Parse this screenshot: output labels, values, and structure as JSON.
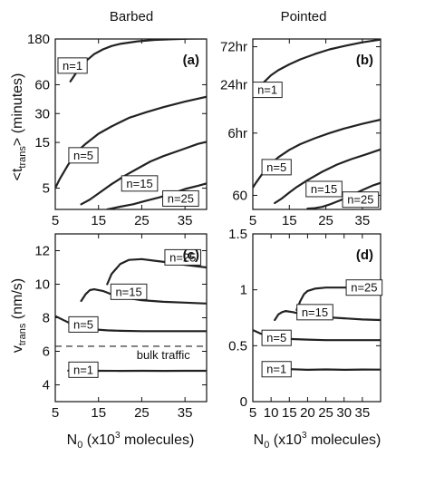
{
  "figure": {
    "column_titles": [
      "Barbed",
      "Pointed"
    ],
    "ylabel_top": {
      "main": "<t",
      "sub": "trans",
      "rest": "> (minutes)"
    },
    "ylabel_bottom": {
      "main": "v",
      "sub": "trans",
      "rest": " (nm/s)"
    },
    "xlabel": {
      "main": "N",
      "sub": "0",
      "mid": " (x10",
      "sup": "3",
      "rest": " molecules)"
    }
  },
  "chart_data": [
    {
      "id": "a",
      "panel_label": "(a)",
      "type": "line",
      "column": "Barbed",
      "yscale": "log",
      "xlim": [
        5,
        40
      ],
      "ylim": [
        3,
        180
      ],
      "xticks": [
        5,
        15,
        25,
        35
      ],
      "xtick_labels": [
        "5",
        "15",
        "25",
        "35"
      ],
      "yticks": [
        5,
        15,
        30,
        60,
        180
      ],
      "ytick_labels": [
        "5",
        "15",
        "30",
        "60",
        "180"
      ],
      "series": [
        {
          "name": "n=1",
          "x": [
            8.5,
            10,
            12,
            14,
            16,
            18,
            20,
            24,
            28,
            32,
            36,
            40
          ],
          "y": [
            65,
            82,
            105,
            125,
            140,
            152,
            160,
            170,
            176,
            179,
            181,
            182
          ]
        },
        {
          "name": "n=5",
          "x": [
            5,
            6,
            8,
            10,
            12,
            15,
            18,
            22,
            26,
            30,
            35,
            40
          ],
          "y": [
            5,
            6.2,
            8.8,
            12,
            14.5,
            18.5,
            22,
            27,
            31,
            35,
            40,
            45
          ]
        },
        {
          "name": "n=15",
          "x": [
            11,
            13,
            15,
            18,
            21,
            24,
            27,
            30,
            34,
            38,
            40
          ],
          "y": [
            3.4,
            3.8,
            4.4,
            5.5,
            6.7,
            8,
            9.5,
            10.8,
            12.5,
            14.5,
            15.2
          ]
        },
        {
          "name": "n=25",
          "x": [
            17,
            20,
            23,
            26,
            29,
            32,
            35,
            38,
            40
          ],
          "y": [
            3,
            3.2,
            3.4,
            3.7,
            4.0,
            4.4,
            4.9,
            5.3,
            5.6
          ]
        }
      ],
      "line_labels": [
        {
          "text": "n=1",
          "x": 9,
          "y": 95
        },
        {
          "text": "n=5",
          "x": 11.5,
          "y": 11
        },
        {
          "text": "n=15",
          "x": 24.5,
          "y": 5.6
        },
        {
          "text": "n=25",
          "x": 34,
          "y": 3.9
        }
      ]
    },
    {
      "id": "b",
      "panel_label": "(b)",
      "type": "line",
      "column": "Pointed",
      "yscale": "log",
      "xlim": [
        5,
        40
      ],
      "ylim": [
        40,
        5400
      ],
      "xticks": [
        5,
        15,
        25,
        35
      ],
      "xtick_labels": [
        "5",
        "15",
        "25",
        "35"
      ],
      "yticks": [
        60,
        360,
        1440,
        4320
      ],
      "ytick_labels": [
        "60",
        "6hr",
        "24hr",
        "72hr"
      ],
      "series": [
        {
          "name": "n=1",
          "x": [
            6,
            8,
            10,
            12,
            15,
            18,
            22,
            26,
            30,
            35,
            40
          ],
          "y": [
            1200,
            1550,
            1900,
            2200,
            2600,
            3000,
            3500,
            4000,
            4400,
            4900,
            5300
          ]
        },
        {
          "name": "n=5",
          "x": [
            5,
            6,
            8,
            10,
            12,
            15,
            18,
            22,
            26,
            30,
            35,
            40
          ],
          "y": [
            75,
            88,
            118,
            150,
            180,
            222,
            262,
            310,
            360,
            410,
            470,
            530
          ]
        },
        {
          "name": "n=15",
          "x": [
            11,
            13,
            15,
            17,
            20,
            24,
            28,
            32,
            36,
            40
          ],
          "y": [
            48,
            55,
            65,
            76,
            93,
            118,
            145,
            170,
            195,
            225
          ]
        },
        {
          "name": "n=25",
          "x": [
            20,
            22,
            24,
            26,
            29,
            32,
            35,
            38,
            40
          ],
          "y": [
            41,
            41.5,
            43,
            46,
            52,
            60,
            70,
            80,
            86
          ]
        }
      ],
      "line_labels": [
        {
          "text": "n=1",
          "x": 9,
          "y": 1250
        },
        {
          "text": "n=5",
          "x": 11.5,
          "y": 135
        },
        {
          "text": "n=15",
          "x": 24.5,
          "y": 72
        },
        {
          "text": "n=25",
          "x": 34.5,
          "y": 53
        }
      ]
    },
    {
      "id": "c",
      "panel_label": "(c)",
      "type": "line",
      "column": "Barbed",
      "yscale": "linear",
      "xlim": [
        5,
        40
      ],
      "ylim": [
        3,
        13
      ],
      "xticks": [
        5,
        15,
        25,
        35
      ],
      "xtick_labels": [
        "5",
        "15",
        "25",
        "35"
      ],
      "yticks": [
        4,
        6,
        8,
        10,
        12
      ],
      "ytick_labels": [
        "4",
        "6",
        "8",
        "10",
        "12"
      ],
      "series": [
        {
          "name": "n=1",
          "x": [
            8,
            10,
            15,
            20,
            25,
            30,
            35,
            40
          ],
          "y": [
            4.85,
            4.82,
            4.84,
            4.83,
            4.84,
            4.83,
            4.84,
            4.84
          ]
        },
        {
          "name": "n=5",
          "x": [
            5,
            7,
            9,
            11,
            14,
            17,
            20,
            25,
            30,
            35,
            40
          ],
          "y": [
            8.1,
            7.85,
            7.6,
            7.4,
            7.3,
            7.25,
            7.22,
            7.2,
            7.2,
            7.2,
            7.2
          ]
        },
        {
          "name": "n=15",
          "x": [
            11,
            12,
            13,
            14,
            16,
            18,
            21,
            25,
            30,
            35,
            40
          ],
          "y": [
            9.0,
            9.4,
            9.65,
            9.7,
            9.6,
            9.4,
            9.2,
            9.05,
            8.95,
            8.9,
            8.85
          ]
        },
        {
          "name": "n=25",
          "x": [
            17,
            18,
            20,
            22,
            25,
            28,
            31,
            35,
            40
          ],
          "y": [
            10.0,
            10.6,
            11.2,
            11.45,
            11.5,
            11.4,
            11.3,
            11.15,
            11.0
          ]
        }
      ],
      "reference_line": {
        "y": 6.3,
        "label": "bulk traffic"
      },
      "line_labels": [
        {
          "text": "n=1",
          "x": 11.5,
          "y": 4.9
        },
        {
          "text": "n=5",
          "x": 11.5,
          "y": 7.6
        },
        {
          "text": "n=15",
          "x": 22,
          "y": 9.55
        },
        {
          "text": "n=25",
          "x": 34.5,
          "y": 11.6
        }
      ]
    },
    {
      "id": "d",
      "panel_label": "(d)",
      "type": "line",
      "column": "Pointed",
      "yscale": "linear",
      "xlim": [
        5,
        40
      ],
      "ylim": [
        0,
        1.5
      ],
      "xticks": [
        5,
        10,
        15,
        20,
        25,
        30,
        35
      ],
      "xtick_labels": [
        "5",
        "10",
        "15",
        "20",
        "25",
        "30",
        "35"
      ],
      "yticks": [
        0,
        0.5,
        1,
        1.5
      ],
      "ytick_labels": [
        "0",
        "0.5",
        "1",
        "1.5"
      ],
      "series": [
        {
          "name": "n=1",
          "x": [
            9,
            12,
            15,
            20,
            25,
            30,
            35,
            40
          ],
          "y": [
            0.29,
            0.285,
            0.29,
            0.285,
            0.288,
            0.285,
            0.287,
            0.286
          ]
        },
        {
          "name": "n=5",
          "x": [
            5,
            7,
            9,
            12,
            15,
            20,
            25,
            30,
            35,
            40
          ],
          "y": [
            0.64,
            0.61,
            0.59,
            0.57,
            0.56,
            0.555,
            0.55,
            0.55,
            0.55,
            0.55
          ]
        },
        {
          "name": "n=15",
          "x": [
            11,
            12,
            13,
            14,
            16,
            18,
            21,
            25,
            30,
            35,
            40
          ],
          "y": [
            0.73,
            0.78,
            0.8,
            0.81,
            0.8,
            0.785,
            0.77,
            0.755,
            0.745,
            0.735,
            0.73
          ]
        },
        {
          "name": "n=25",
          "x": [
            17,
            18,
            19,
            20,
            22,
            25,
            28,
            32,
            36,
            40
          ],
          "y": [
            0.82,
            0.9,
            0.96,
            0.99,
            1.01,
            1.02,
            1.02,
            1.02,
            1.02,
            1.02
          ]
        }
      ],
      "line_labels": [
        {
          "text": "n=1",
          "x": 11.5,
          "y": 0.29
        },
        {
          "text": "n=5",
          "x": 11.5,
          "y": 0.57
        },
        {
          "text": "n=15",
          "x": 22,
          "y": 0.8
        },
        {
          "text": "n=25",
          "x": 35.5,
          "y": 1.02
        }
      ]
    }
  ]
}
